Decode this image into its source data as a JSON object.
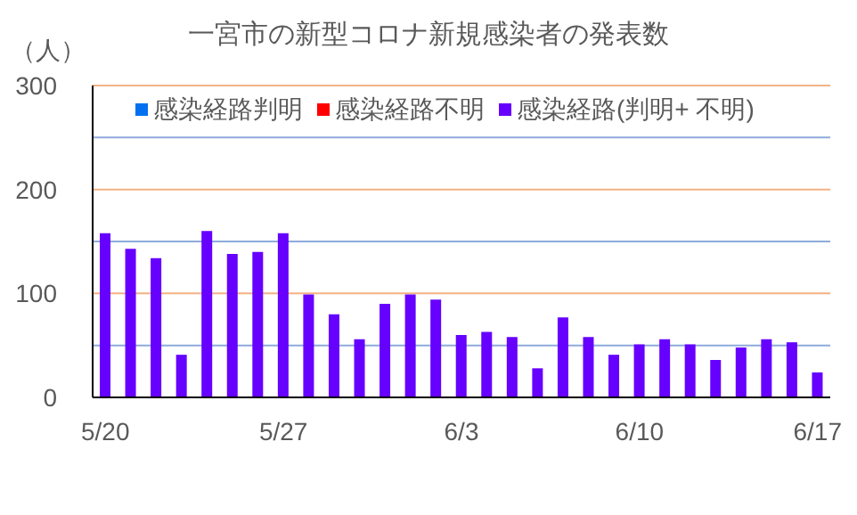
{
  "chart_data": {
    "type": "bar",
    "title": "一宮市の新型コロナ新規感染者の発表数",
    "ylabel": "（人）",
    "categories": [
      "5/20",
      null,
      null,
      null,
      null,
      null,
      null,
      "5/27",
      null,
      null,
      null,
      null,
      null,
      null,
      "6/3",
      null,
      null,
      null,
      null,
      null,
      null,
      "6/10",
      null,
      null,
      null,
      null,
      null,
      null,
      "6/17"
    ],
    "series": [
      {
        "name": "感染経路判明",
        "color": "#0070f0",
        "values": [
          null,
          null,
          null,
          null,
          null,
          null,
          null,
          null,
          null,
          null,
          null,
          null,
          null,
          null,
          null,
          null,
          null,
          null,
          null,
          null,
          null,
          null,
          null,
          null,
          null,
          null,
          null,
          null,
          null
        ]
      },
      {
        "name": "感染経路不明",
        "color": "#ff0000",
        "values": [
          null,
          null,
          null,
          null,
          null,
          null,
          null,
          null,
          null,
          null,
          null,
          null,
          null,
          null,
          null,
          null,
          null,
          null,
          null,
          null,
          null,
          null,
          null,
          null,
          null,
          null,
          null,
          null,
          null
        ]
      },
      {
        "name": "感染経路(判明+ 不明)",
        "color": "#6600ff",
        "values": [
          158,
          143,
          134,
          41,
          160,
          138,
          140,
          158,
          99,
          80,
          56,
          90,
          99,
          94,
          60,
          63,
          58,
          28,
          77,
          58,
          41,
          51,
          56,
          51,
          36,
          48,
          56,
          53,
          24
        ]
      }
    ],
    "ylim": [
      0,
      300
    ],
    "yticks": [
      0,
      {
        "value": 50,
        "label": null
      },
      100,
      {
        "value": 150,
        "label": null
      },
      200,
      {
        "value": 250,
        "label": null
      },
      300
    ],
    "grid": "y",
    "legend": "top"
  }
}
